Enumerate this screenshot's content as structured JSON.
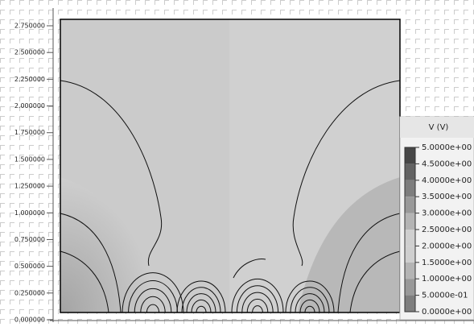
{
  "chart_data": {
    "type": "contour",
    "ylim": [
      0,
      2.75
    ],
    "yticks": [
      {
        "value": 0,
        "label": "0.000000"
      },
      {
        "value": 0.25,
        "label": "0.250000"
      },
      {
        "value": 0.5,
        "label": "0.500000"
      },
      {
        "value": 0.75,
        "label": "0.750000"
      },
      {
        "value": 1,
        "label": "1.000000"
      },
      {
        "value": 1.25,
        "label": "1.250000"
      },
      {
        "value": 1.5,
        "label": "1.500000"
      },
      {
        "value": 1.75,
        "label": "1.750000"
      },
      {
        "value": 2,
        "label": "2.000000"
      },
      {
        "value": 2.25,
        "label": "2.250000"
      },
      {
        "value": 2.5,
        "label": "2.500000"
      },
      {
        "value": 2.75,
        "label": "2.750000"
      }
    ],
    "legend": {
      "title": "V (V)",
      "levels": [
        {
          "value": 5,
          "label": "5.0000e+00"
        },
        {
          "value": 4.5,
          "label": "4.5000e+00"
        },
        {
          "value": 4,
          "label": "4.0000e+00"
        },
        {
          "value": 3.5,
          "label": "3.5000e+00"
        },
        {
          "value": 3,
          "label": "3.0000e+00"
        },
        {
          "value": 2.5,
          "label": "2.5000e+00"
        },
        {
          "value": 2,
          "label": "2.0000e+00"
        },
        {
          "value": 1.5,
          "label": "1.5000e+00"
        },
        {
          "value": 1,
          "label": "1.0000e+00"
        },
        {
          "value": 0.5,
          "label": "5.0000e-01"
        },
        {
          "value": 0,
          "label": "0.0000e+00"
        }
      ]
    }
  }
}
